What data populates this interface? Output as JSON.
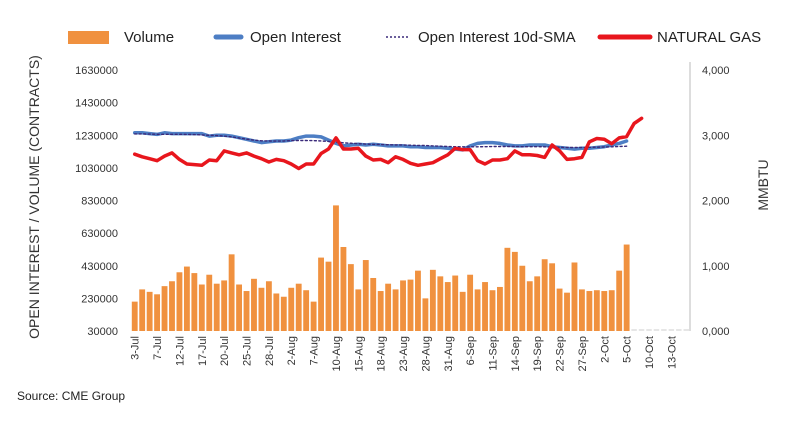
{
  "chart_data": {
    "type": "bar+line",
    "title": "",
    "source": "Source: CME Group",
    "legend": [
      {
        "label": "Volume",
        "color": "#f0913f",
        "style": "bar"
      },
      {
        "label": "Open Interest",
        "color": "#4d7ec4",
        "style": "line"
      },
      {
        "label": "Open Interest 10d-SMA",
        "color": "#3a2a7a",
        "style": "dotted"
      },
      {
        "label": "NATURAL GAS",
        "color": "#e8161d",
        "style": "line"
      }
    ],
    "y_left": {
      "label": "OPEN INTEREST / VOLUME (CONTRACTS)",
      "min": 30000,
      "max": 1630000,
      "ticks": [
        "30000",
        "230000",
        "430000",
        "630000",
        "830000",
        "1030000",
        "1230000",
        "1430000",
        "1630000"
      ]
    },
    "y_right": {
      "label": "MMBTU",
      "min": 0,
      "max": 4000,
      "ticks": [
        "0,000",
        "1,000",
        "2,000",
        "3,000",
        "4,000"
      ]
    },
    "x_ticks": [
      "3-Jul",
      "7-Jul",
      "12-Jul",
      "17-Jul",
      "20-Jul",
      "25-Jul",
      "28-Jul",
      "2-Aug",
      "7-Aug",
      "10-Aug",
      "15-Aug",
      "18-Aug",
      "23-Aug",
      "28-Aug",
      "31-Aug",
      "6-Sep",
      "11-Sep",
      "14-Sep",
      "19-Sep",
      "22-Sep",
      "27-Sep",
      "2-Oct",
      "5-Oct",
      "10-Oct",
      "13-Oct"
    ],
    "x_tick_positions": [
      0,
      3,
      6,
      9,
      12,
      15,
      18,
      21,
      24,
      27,
      30,
      33,
      36,
      39,
      42,
      45,
      48,
      51,
      54,
      57,
      60,
      63,
      66,
      69,
      72
    ],
    "n_slots": 75,
    "volume": [
      210000,
      285000,
      270000,
      255000,
      305000,
      335000,
      390000,
      425000,
      385000,
      315000,
      375000,
      320000,
      340000,
      500000,
      315000,
      275000,
      350000,
      295000,
      335000,
      260000,
      240000,
      295000,
      320000,
      280000,
      210000,
      480000,
      455000,
      800000,
      545000,
      440000,
      285000,
      465000,
      355000,
      275000,
      320000,
      285000,
      340000,
      345000,
      400000,
      230000,
      405000,
      365000,
      330000,
      370000,
      270000,
      375000,
      285000,
      330000,
      280000,
      300000,
      540000,
      515000,
      430000,
      335000,
      365000,
      470000,
      445000,
      290000,
      265000,
      450000,
      285000,
      275000,
      280000,
      275000,
      280000,
      400000,
      560000
    ],
    "open_interest": [
      1245000,
      1245000,
      1240000,
      1235000,
      1245000,
      1240000,
      1240000,
      1240000,
      1240000,
      1240000,
      1225000,
      1230000,
      1230000,
      1225000,
      1215000,
      1205000,
      1195000,
      1185000,
      1190000,
      1195000,
      1195000,
      1200000,
      1215000,
      1225000,
      1225000,
      1220000,
      1200000,
      1180000,
      1165000,
      1170000,
      1175000,
      1170000,
      1175000,
      1170000,
      1165000,
      1165000,
      1165000,
      1160000,
      1160000,
      1155000,
      1155000,
      1155000,
      1150000,
      1145000,
      1140000,
      1165000,
      1180000,
      1185000,
      1185000,
      1180000,
      1170000,
      1165000,
      1165000,
      1170000,
      1170000,
      1170000,
      1160000,
      1155000,
      1150000,
      1145000,
      1150000,
      1150000,
      1155000,
      1160000,
      1170000,
      1180000,
      1195000
    ],
    "open_interest_sma": [
      1238000,
      1238000,
      1237000,
      1236000,
      1236000,
      1236000,
      1236000,
      1235000,
      1234000,
      1232000,
      1230000,
      1228000,
      1225000,
      1220000,
      1213000,
      1206000,
      1200000,
      1196000,
      1195000,
      1194000,
      1195000,
      1197000,
      1198000,
      1198000,
      1197000,
      1195000,
      1192000,
      1188000,
      1184000,
      1181000,
      1178000,
      1176000,
      1174000,
      1173000,
      1172000,
      1171000,
      1170000,
      1169000,
      1168000,
      1167000,
      1165000,
      1163000,
      1161000,
      1160000,
      1159000,
      1159000,
      1159000,
      1160000,
      1161000,
      1161000,
      1161000,
      1161000,
      1160000,
      1160000,
      1160000,
      1159000,
      1158000,
      1156000,
      1155000,
      1155000,
      1155000,
      1156000,
      1157000,
      1158000,
      1159000,
      1161000,
      1163000
    ],
    "natural_gas": [
      2710,
      2670,
      2640,
      2610,
      2680,
      2730,
      2630,
      2560,
      2550,
      2540,
      2620,
      2610,
      2760,
      2730,
      2700,
      2730,
      2680,
      2640,
      2590,
      2630,
      2610,
      2560,
      2490,
      2560,
      2560,
      2720,
      2790,
      2960,
      2790,
      2790,
      2800,
      2680,
      2620,
      2630,
      2580,
      2670,
      2630,
      2570,
      2540,
      2560,
      2580,
      2640,
      2700,
      2800,
      2780,
      2780,
      2610,
      2560,
      2620,
      2620,
      2640,
      2760,
      2700,
      2700,
      2690,
      2660,
      2850,
      2760,
      2630,
      2640,
      2660,
      2900,
      2950,
      2940,
      2870,
      2960,
      2980,
      3180,
      3260
    ]
  }
}
